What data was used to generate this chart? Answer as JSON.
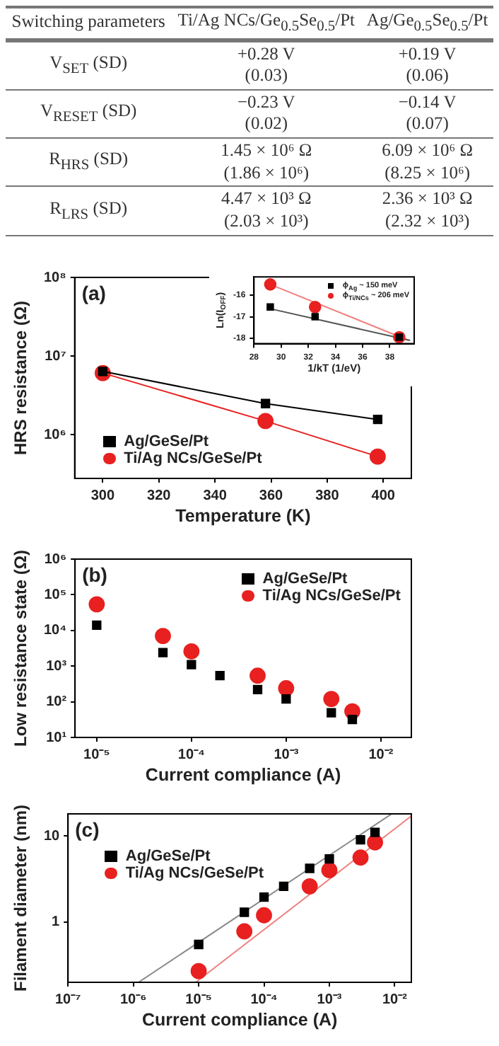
{
  "chart_data": [
    {
      "type": "other",
      "annotations": [
        "Switching parameters",
        "Ti/Ag NCs/Ge$_{0.5}$Se$_{0.5}$/Pt",
        "Ag/Ge$_{0.5}$Se$_{0.5}$/Pt",
        "V$_{SET}$ (SD)",
        "+0.28 V\n(0.03)",
        "+0.19 V\n(0.06)",
        "V$_{RESET}$ (SD)",
        "−0.23 V\n(0.02)",
        "−0.14 V\n(0.07)",
        "R$_{HRS}$ (SD)",
        "1.45 × 10⁶ Ω\n(1.86 × 10⁶)",
        "6.09 × 10⁶ Ω\n(8.25 × 10⁶)",
        "R$_{LRS}$ (SD)",
        "4.47 × 10³ Ω\n(2.03 × 10³)",
        "2.36 × 10³ Ω\n(2.32 × 10³)"
      ]
    },
    {
      "type": "line",
      "annotations": [
        "(a)"
      ],
      "xlabel": "Temperature (K)",
      "ylabel": "HRS resistance (Ω)",
      "x": [
        300,
        358,
        398
      ],
      "series": [
        {
          "name": "Ag/GeSe/Pt",
          "color": "#000000",
          "marker": "square",
          "values": [
            6400000,
            2500000,
            1570000
          ]
        },
        {
          "name": "Ti/Ag NCs/GeSe/Pt",
          "color": "#e82020",
          "marker": "circle",
          "values": [
            6100000,
            1500000,
            530000
          ]
        }
      ],
      "log": "y",
      "xlim": [
        290,
        410
      ],
      "xticks": [
        300,
        320,
        340,
        360,
        380,
        400
      ],
      "ylim": [
        280000,
        100000000
      ],
      "yticks": [
        {
          "value": 1000000,
          "label": "10⁶"
        },
        {
          "value": 10000000,
          "label": "10⁷"
        },
        {
          "value": 100000000,
          "label": "10⁸"
        }
      ],
      "legend": "bottom left"
    },
    {
      "type": "scatter",
      "xlabel": "1/kT (1/eV)",
      "ylabel": "Ln(I$_{OFF}$)",
      "series": [
        {
          "name": "ϕ$_{Ag}$ ~ 150 meV",
          "color": "#000000",
          "marker": "square",
          "x": [
            29.2,
            32.5,
            38.7
          ],
          "values": [
            -16.55,
            -17.0,
            -17.95
          ]
        },
        {
          "name": "ϕ$_{Ti/NCs}$ ~ 206 meV",
          "color": "#e82020",
          "marker": "circle",
          "x": [
            29.2,
            32.5,
            38.7
          ],
          "values": [
            -15.5,
            -16.55,
            -17.95
          ]
        },
        {
          "type": "line",
          "color": "#555555",
          "marker": "none",
          "x": [
            29,
            39.5
          ],
          "values": [
            -16.6,
            -18.1
          ]
        },
        {
          "type": "line",
          "color": "#f08080",
          "marker": "none",
          "x": [
            29,
            39.4
          ],
          "values": [
            -15.45,
            -18.1
          ]
        }
      ],
      "xlim": [
        28,
        39.8
      ],
      "xticks": [
        28,
        30,
        32,
        34,
        36,
        38
      ],
      "ylim": [
        -18.25,
        -15.15
      ],
      "yticks": [
        -16,
        -17,
        -18
      ],
      "legend": "top right"
    },
    {
      "type": "scatter",
      "annotations": [
        "(b)"
      ],
      "xlabel": "Current compliance (A)",
      "ylabel": "Low resistance state (Ω)",
      "series": [
        {
          "name": "Ag/GeSe/Pt",
          "color": "#000000",
          "marker": "square",
          "x": [
            1e-05,
            5e-05,
            0.0001,
            0.0002,
            0.0005,
            0.001,
            0.003,
            0.005
          ],
          "values": [
            14000,
            2400,
            1100,
            540,
            220,
            120,
            49,
            32
          ]
        },
        {
          "name": "Ti/Ag NCs/GeSe/Pt",
          "color": "#e82020",
          "marker": "circle",
          "x": [
            1e-05,
            5e-05,
            0.0001,
            0.0005,
            0.001,
            0.003,
            0.005
          ],
          "values": [
            54000,
            7000,
            2600,
            540,
            240,
            120,
            54
          ]
        }
      ],
      "log": "xy",
      "xlim": [
        5.9e-06,
        0.021
      ],
      "xticks": [
        {
          "value": 1e-05,
          "label": "10⁻⁵"
        },
        {
          "value": 0.0001,
          "label": "10⁻⁴"
        },
        {
          "value": 0.001,
          "label": "10⁻³"
        },
        {
          "value": 0.01,
          "label": "10⁻²"
        }
      ],
      "ylim": [
        10,
        1000000
      ],
      "yticks": [
        {
          "value": 10,
          "label": "10¹"
        },
        {
          "value": 100,
          "label": "10²"
        },
        {
          "value": 1000,
          "label": "10³"
        },
        {
          "value": 10000,
          "label": "10⁴"
        },
        {
          "value": 100000,
          "label": "10⁵"
        },
        {
          "value": 1000000,
          "label": "10⁶"
        }
      ],
      "legend": "top right"
    },
    {
      "type": "scatter",
      "annotations": [
        "(c)"
      ],
      "xlabel": "Current compliance (A)",
      "ylabel": "Filament diameter (nm)",
      "series": [
        {
          "name": "Ag/GeSe/Pt",
          "color": "#000000",
          "marker": "square",
          "x": [
            1e-05,
            5e-05,
            0.0001,
            0.0002,
            0.0005,
            0.001,
            0.003,
            0.005
          ],
          "values": [
            0.55,
            1.3,
            1.95,
            2.6,
            4.2,
            5.4,
            9,
            11
          ]
        },
        {
          "name": "Ti/Ag NCs/GeSe/Pt",
          "color": "#e82020",
          "marker": "circle",
          "x": [
            1e-05,
            5e-05,
            0.0001,
            0.0005,
            0.001,
            0.003,
            0.005
          ],
          "values": [
            0.27,
            0.78,
            1.2,
            2.6,
            4.0,
            5.6,
            8.4
          ]
        },
        {
          "type": "line",
          "color": "#888888",
          "marker": "none",
          "x": [
            1.2e-06,
            0.009
          ],
          "values": [
            0.2,
            18
          ]
        },
        {
          "type": "line",
          "color": "#f08080",
          "marker": "none",
          "x": [
            9e-06,
            0.018
          ],
          "values": [
            0.2,
            17
          ]
        }
      ],
      "log": "xy",
      "xlim": [
        1e-07,
        0.018
      ],
      "xticks": [
        {
          "value": 1e-07,
          "label": "10⁻⁷"
        },
        {
          "value": 1e-06,
          "label": "10⁻⁶"
        },
        {
          "value": 1e-05,
          "label": "10⁻⁵"
        },
        {
          "value": 0.0001,
          "label": "10⁻⁴"
        },
        {
          "value": 0.001,
          "label": "10⁻³"
        },
        {
          "value": 0.01,
          "label": "10⁻²"
        }
      ],
      "ylim": [
        0.2,
        18
      ],
      "yticks": [
        1,
        10
      ],
      "legend": "top left"
    }
  ]
}
